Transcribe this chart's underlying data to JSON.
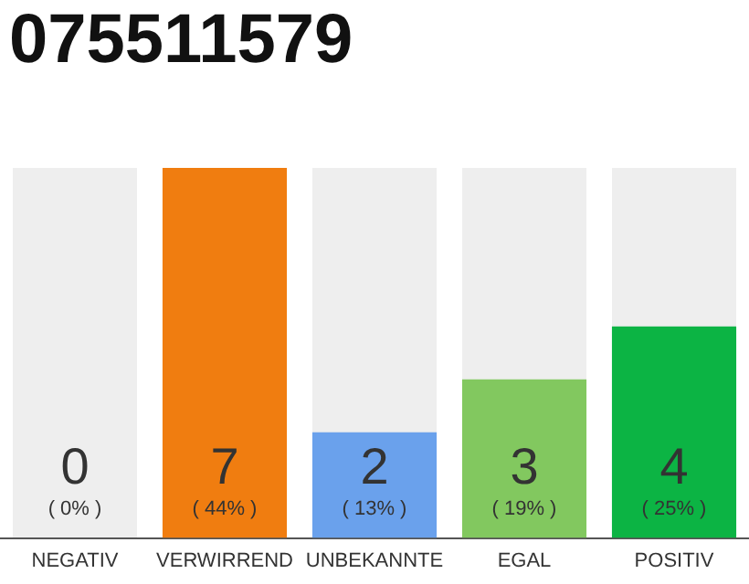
{
  "chart_data": {
    "type": "bar",
    "title": "075511579",
    "categories": [
      "NEGATIV",
      "VERWIRREND",
      "UNBEKANNTE",
      "EGAL",
      "POSITIV"
    ],
    "values": [
      0,
      7,
      2,
      3,
      4
    ],
    "colors": [
      "#444444",
      "#f07d10",
      "#6aa1ec",
      "#82c85f",
      "#0cb444"
    ],
    "tick_labels": "x",
    "grid": false,
    "legend": false,
    "data_labels": true,
    "annotations": [
      "( 0% )",
      "( 44% )",
      "( 13% )",
      "( 19% )",
      "( 25% )"
    ]
  }
}
